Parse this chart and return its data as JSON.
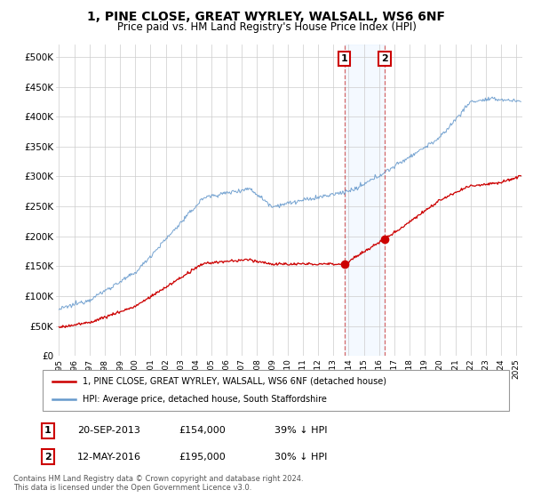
{
  "title": "1, PINE CLOSE, GREAT WYRLEY, WALSALL, WS6 6NF",
  "subtitle": "Price paid vs. HM Land Registry's House Price Index (HPI)",
  "title_fontsize": 10,
  "subtitle_fontsize": 8.5,
  "xlim_start": 1994.8,
  "xlim_end": 2025.4,
  "ylim": [
    0,
    520000
  ],
  "yticks": [
    0,
    50000,
    100000,
    150000,
    200000,
    250000,
    300000,
    350000,
    400000,
    450000,
    500000
  ],
  "ytick_labels": [
    "£0",
    "£50K",
    "£100K",
    "£150K",
    "£200K",
    "£250K",
    "£300K",
    "£350K",
    "£400K",
    "£450K",
    "£500K"
  ],
  "xticks": [
    1995,
    1996,
    1997,
    1998,
    1999,
    2000,
    2001,
    2002,
    2003,
    2004,
    2005,
    2006,
    2007,
    2008,
    2009,
    2010,
    2011,
    2012,
    2013,
    2014,
    2015,
    2016,
    2017,
    2018,
    2019,
    2020,
    2021,
    2022,
    2023,
    2024,
    2025
  ],
  "sale1_date": 2013.72,
  "sale1_price": 154000,
  "sale1_label": "1",
  "sale2_date": 2016.36,
  "sale2_price": 195000,
  "sale2_label": "2",
  "sale1_info": "20-SEP-2013",
  "sale1_price_str": "£154,000",
  "sale1_hpi": "39% ↓ HPI",
  "sale2_info": "12-MAY-2016",
  "sale2_price_str": "£195,000",
  "sale2_hpi": "30% ↓ HPI",
  "legend1_label": "1, PINE CLOSE, GREAT WYRLEY, WALSALL, WS6 6NF (detached house)",
  "legend2_label": "HPI: Average price, detached house, South Staffordshire",
  "red_color": "#cc0000",
  "blue_color": "#6699cc",
  "highlight_color": "#ddeeff",
  "footer": "Contains HM Land Registry data © Crown copyright and database right 2024.\nThis data is licensed under the Open Government Licence v3.0.",
  "background_color": "#ffffff"
}
